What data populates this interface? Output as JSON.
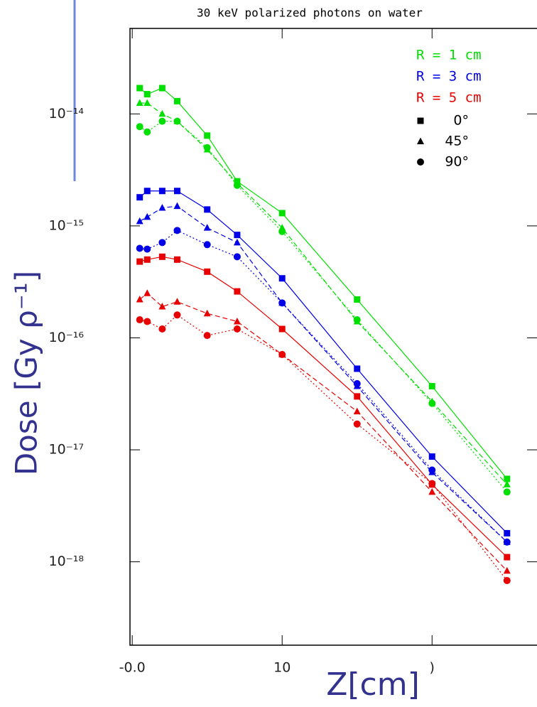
{
  "chart_data": {
    "type": "scatter",
    "title": "30 keV polarized photons on water",
    "x_label": "Z[cm]",
    "y_label": "Dose [Gy ρ⁻¹]",
    "log_y": true,
    "xlim": [
      -0.15,
      27
    ],
    "ylim": [
      1.8e-19,
      5.8e-14
    ],
    "xticks": [
      {
        "value": 0,
        "label": "-0.0"
      },
      10,
      {
        "value": 20,
        "label": ")"
      }
    ],
    "yticks": [
      {
        "value": 1e-14,
        "label": "10⁻¹⁴"
      },
      {
        "value": 1e-15,
        "label": "10⁻¹⁵"
      },
      {
        "value": 1e-16,
        "label": "10⁻¹⁶"
      },
      {
        "value": 1e-17,
        "label": "10⁻¹⁷"
      },
      {
        "value": 1e-18,
        "label": "10⁻¹⁸"
      }
    ],
    "x": [
      0.5,
      1,
      2,
      3,
      5,
      7,
      10,
      15,
      20,
      25
    ],
    "legend": [
      {
        "name": "R = 1 cm",
        "color": "#00e000"
      },
      {
        "name": "R = 3 cm",
        "color": "#0000e8"
      },
      {
        "name": "R = 5 cm",
        "color": "#e80000"
      }
    ],
    "marker_legend": [
      {
        "name": "0°",
        "marker": "square"
      },
      {
        "name": "45°",
        "marker": "triangle"
      },
      {
        "name": "90°",
        "marker": "circle"
      }
    ],
    "series": [
      {
        "color": "#00e000",
        "marker": "square",
        "dash": "solid",
        "values": [
          1.7e-14,
          1.5e-14,
          1.7e-14,
          1.3e-14,
          6.4e-15,
          2.5e-15,
          1.3e-15,
          2.2e-16,
          3.7e-17,
          5.5e-18
        ]
      },
      {
        "color": "#00e000",
        "marker": "triangle",
        "dash": "dashed",
        "values": [
          1.25e-14,
          1.25e-14,
          1e-14,
          8.6e-15,
          4.8e-15,
          2.4e-15,
          9.6e-16,
          1.4e-16,
          2.7e-17,
          4.9e-18
        ]
      },
      {
        "color": "#00e000",
        "marker": "circle",
        "dash": "dotted",
        "values": [
          7.7e-15,
          6.9e-15,
          8.6e-15,
          8.6e-15,
          5e-15,
          2.3e-15,
          8.9e-16,
          1.45e-16,
          2.6e-17,
          4.2e-18
        ]
      },
      {
        "color": "#0000e8",
        "marker": "square",
        "dash": "solid",
        "values": [
          1.8e-15,
          2.05e-15,
          2.05e-15,
          2.05e-15,
          1.4e-15,
          8.3e-16,
          3.4e-16,
          5.3e-17,
          8.7e-18,
          1.8e-18
        ]
      },
      {
        "color": "#0000e8",
        "marker": "triangle",
        "dash": "dashed",
        "values": [
          1.1e-15,
          1.2e-15,
          1.45e-15,
          1.5e-15,
          9.6e-16,
          7.1e-16,
          2.05e-16,
          3.7e-17,
          6.3e-18,
          1.5e-18
        ]
      },
      {
        "color": "#0000e8",
        "marker": "circle",
        "dash": "dotted",
        "values": [
          6.3e-16,
          6.2e-16,
          7.1e-16,
          9.1e-16,
          6.8e-16,
          5.3e-16,
          2.05e-16,
          3.9e-17,
          6.6e-18,
          1.5e-18
        ]
      },
      {
        "color": "#e80000",
        "marker": "square",
        "dash": "solid",
        "values": [
          4.8e-16,
          5e-16,
          5.3e-16,
          5e-16,
          3.9e-16,
          2.6e-16,
          1.2e-16,
          3e-17,
          4.9e-18,
          1.1e-18
        ]
      },
      {
        "color": "#e80000",
        "marker": "triangle",
        "dash": "dashed",
        "values": [
          2.2e-16,
          2.5e-16,
          1.9e-16,
          2.1e-16,
          1.65e-16,
          1.4e-16,
          7.1e-17,
          2.2e-17,
          4.2e-18,
          8.3e-19
        ]
      },
      {
        "color": "#e80000",
        "marker": "circle",
        "dash": "dotted",
        "values": [
          1.45e-16,
          1.4e-16,
          1.2e-16,
          1.6e-16,
          1.05e-16,
          1.2e-16,
          7.1e-17,
          1.7e-17,
          5e-18,
          6.8e-19
        ]
      }
    ]
  }
}
